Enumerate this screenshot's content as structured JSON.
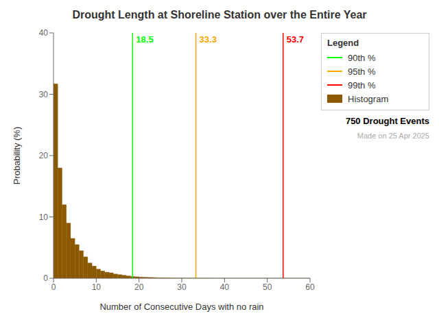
{
  "chart_data": {
    "type": "histogram",
    "title": "Drought Length at Shoreline Station over the Entire Year",
    "xlabel": "Number of Consecutive Days with no rain",
    "ylabel": "Probability (%)",
    "name": "Histogram",
    "color": "#8B5A00",
    "bins": [
      0,
      1,
      2,
      3,
      4,
      5,
      6,
      7,
      8,
      9,
      10,
      11,
      12,
      13,
      14,
      15,
      16,
      17,
      18,
      19,
      20,
      21,
      22,
      23,
      24,
      25,
      26,
      27,
      28,
      29,
      30,
      31,
      32,
      33,
      34,
      35,
      36,
      37,
      38,
      39,
      40,
      41,
      42,
      43,
      44,
      45,
      46,
      47,
      48,
      49,
      50,
      51,
      52,
      53,
      54,
      55,
      56,
      57,
      58,
      59,
      60
    ],
    "values": [
      31.7,
      18.0,
      12.0,
      9.0,
      6.5,
      5.5,
      4.5,
      3.5,
      2.5,
      2.0,
      1.5,
      1.2,
      1.0,
      0.9,
      0.7,
      0.6,
      0.5,
      0.4,
      0.3,
      0.25,
      0.2,
      0.18,
      0.15,
      0.13,
      0.1,
      0.09,
      0.08,
      0.07,
      0.06,
      0.05,
      0.04,
      0.04,
      0.03,
      0.03,
      0.03,
      0.03,
      0.03,
      0.02,
      0.02,
      0.02,
      0.02,
      0.02,
      0.02,
      0.02,
      0.02,
      0.02,
      0.02,
      0.02,
      0.02,
      0.02,
      0.02,
      0.02,
      0.02,
      0.02,
      0.02,
      0.02,
      0.02,
      0.02,
      0.02,
      0.02
    ],
    "vlines": [
      {
        "name": "90th %",
        "value": 18.5,
        "color": "#00FF00"
      },
      {
        "name": "95th %",
        "value": 33.3,
        "color": "#FFA500"
      },
      {
        "name": "99th %",
        "value": 53.7,
        "color": "#FF0000"
      }
    ],
    "xlim": [
      0,
      60
    ],
    "ylim": [
      0,
      40
    ],
    "xticks": [
      0,
      10,
      20,
      30,
      40,
      50,
      60
    ],
    "yticks": [
      0,
      10,
      20,
      30,
      40
    ],
    "grid": false,
    "legend": "upper right",
    "legend_title": "Legend",
    "annotations": [
      {
        "text": "750 Drought Events",
        "color": "#000000"
      },
      {
        "text": "Made on 25 Apr 2025",
        "color": "#AAAAAA"
      }
    ]
  }
}
